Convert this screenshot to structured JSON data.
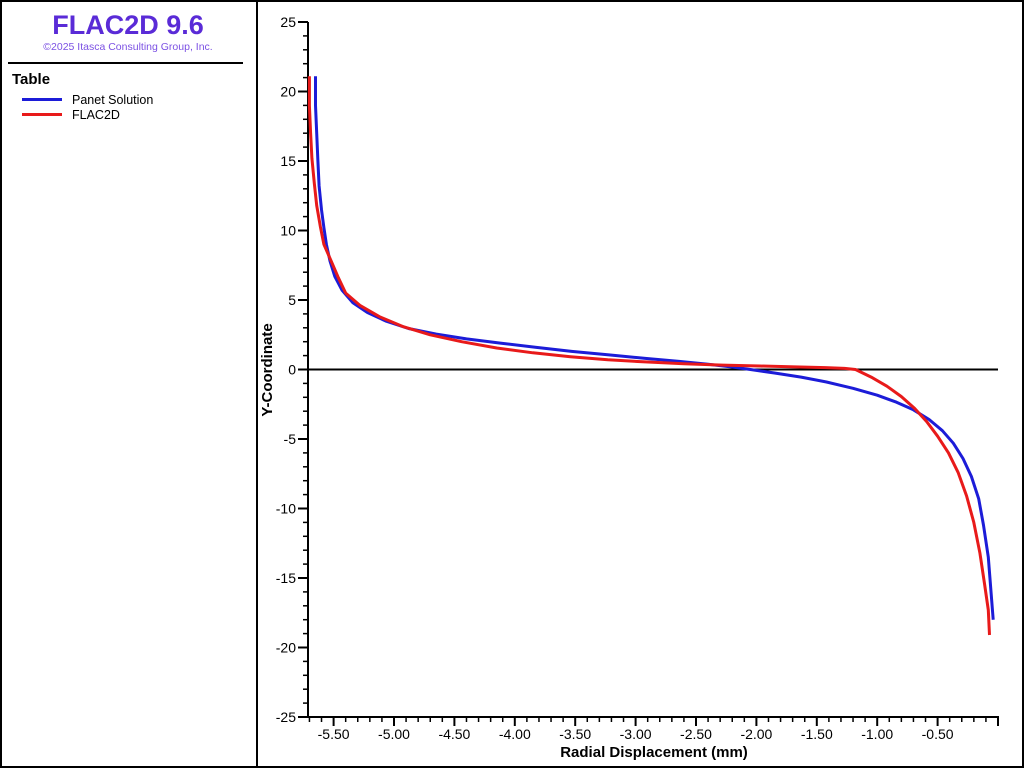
{
  "sidebar": {
    "logo_title": "FLAC2D 9.6",
    "logo_color": "#5a2bd7",
    "copyright": "©2025 Itasca Consulting Group, Inc.",
    "copyright_color": "#7b50e3",
    "legend_title": "Table"
  },
  "chart_data": {
    "type": "line",
    "title": "",
    "xlabel": "Radial Displacement (mm)",
    "ylabel": "Y-Coordinate",
    "xlim": [
      -5.72,
      0
    ],
    "ylim": [
      -25,
      25
    ],
    "grid": false,
    "zero_line": true,
    "legend_position": "sidebar",
    "x_ticks": [
      {
        "v": -5.5,
        "label": "-5.50"
      },
      {
        "v": -5.0,
        "label": "-5.00"
      },
      {
        "v": -4.5,
        "label": "-4.50"
      },
      {
        "v": -4.0,
        "label": "-4.00"
      },
      {
        "v": -3.5,
        "label": "-3.50"
      },
      {
        "v": -3.0,
        "label": "-3.00"
      },
      {
        "v": -2.5,
        "label": "-2.50"
      },
      {
        "v": -2.0,
        "label": "-2.00"
      },
      {
        "v": -1.5,
        "label": "-1.50"
      },
      {
        "v": -1.0,
        "label": "-1.00"
      },
      {
        "v": -0.5,
        "label": "-0.50"
      },
      {
        "v": 0.0,
        "label": ""
      }
    ],
    "x_minor_step": 0.1,
    "y_ticks": [
      {
        "v": 25,
        "label": "25"
      },
      {
        "v": 20,
        "label": "20"
      },
      {
        "v": 15,
        "label": "15"
      },
      {
        "v": 10,
        "label": "10"
      },
      {
        "v": 5,
        "label": "5"
      },
      {
        "v": 0,
        "label": "0"
      },
      {
        "v": -5,
        "label": "-5"
      },
      {
        "v": -10,
        "label": "-10"
      },
      {
        "v": -15,
        "label": "-15"
      },
      {
        "v": -20,
        "label": "-20"
      },
      {
        "v": -25,
        "label": "-25"
      }
    ],
    "y_minor_step": 1,
    "series": [
      {
        "name": "Panet Solution",
        "color": "#1c1cd8",
        "points": [
          [
            -5.65,
            21.1
          ],
          [
            -5.65,
            19.0
          ],
          [
            -5.64,
            17.0
          ],
          [
            -5.63,
            15.0
          ],
          [
            -5.62,
            13.2
          ],
          [
            -5.6,
            11.5
          ],
          [
            -5.58,
            10.2
          ],
          [
            -5.56,
            9.0
          ],
          [
            -5.53,
            7.8
          ],
          [
            -5.49,
            6.7
          ],
          [
            -5.43,
            5.7
          ],
          [
            -5.34,
            4.8
          ],
          [
            -5.22,
            4.1
          ],
          [
            -5.07,
            3.5
          ],
          [
            -4.88,
            2.95
          ],
          [
            -4.65,
            2.55
          ],
          [
            -4.4,
            2.2
          ],
          [
            -4.12,
            1.9
          ],
          [
            -3.83,
            1.6
          ],
          [
            -3.53,
            1.3
          ],
          [
            -3.22,
            1.05
          ],
          [
            -2.92,
            0.8
          ],
          [
            -2.64,
            0.58
          ],
          [
            -2.4,
            0.38
          ],
          [
            -2.2,
            0.18
          ],
          [
            -2.05,
            0.0
          ],
          [
            -1.85,
            -0.25
          ],
          [
            -1.63,
            -0.55
          ],
          [
            -1.42,
            -0.9
          ],
          [
            -1.2,
            -1.35
          ],
          [
            -1.0,
            -1.85
          ],
          [
            -0.84,
            -2.35
          ],
          [
            -0.7,
            -2.9
          ],
          [
            -0.57,
            -3.6
          ],
          [
            -0.46,
            -4.4
          ],
          [
            -0.37,
            -5.3
          ],
          [
            -0.29,
            -6.4
          ],
          [
            -0.22,
            -7.7
          ],
          [
            -0.16,
            -9.3
          ],
          [
            -0.12,
            -11.2
          ],
          [
            -0.08,
            -13.5
          ],
          [
            -0.06,
            -15.8
          ],
          [
            -0.04,
            -18.0
          ]
        ]
      },
      {
        "name": "FLAC2D",
        "color": "#e81a1a",
        "points": [
          [
            -5.7,
            21.1
          ],
          [
            -5.7,
            19.0
          ],
          [
            -5.69,
            17.0
          ],
          [
            -5.68,
            15.2
          ],
          [
            -5.66,
            13.4
          ],
          [
            -5.64,
            11.8
          ],
          [
            -5.61,
            10.3
          ],
          [
            -5.58,
            9.0
          ],
          [
            -5.52,
            7.8
          ],
          [
            -5.46,
            6.6
          ],
          [
            -5.4,
            5.5
          ],
          [
            -5.28,
            4.6
          ],
          [
            -5.12,
            3.8
          ],
          [
            -4.93,
            3.1
          ],
          [
            -4.7,
            2.5
          ],
          [
            -4.44,
            2.0
          ],
          [
            -4.15,
            1.55
          ],
          [
            -3.85,
            1.2
          ],
          [
            -3.54,
            0.92
          ],
          [
            -3.23,
            0.7
          ],
          [
            -2.92,
            0.55
          ],
          [
            -2.6,
            0.42
          ],
          [
            -2.28,
            0.32
          ],
          [
            -1.97,
            0.25
          ],
          [
            -1.68,
            0.19
          ],
          [
            -1.43,
            0.14
          ],
          [
            -1.27,
            0.08
          ],
          [
            -1.18,
            0.0
          ],
          [
            -1.05,
            -0.55
          ],
          [
            -0.92,
            -1.2
          ],
          [
            -0.8,
            -1.95
          ],
          [
            -0.69,
            -2.8
          ],
          [
            -0.59,
            -3.75
          ],
          [
            -0.5,
            -4.8
          ],
          [
            -0.41,
            -6.0
          ],
          [
            -0.33,
            -7.4
          ],
          [
            -0.26,
            -9.1
          ],
          [
            -0.2,
            -11.0
          ],
          [
            -0.15,
            -13.2
          ],
          [
            -0.11,
            -15.5
          ],
          [
            -0.08,
            -17.3
          ],
          [
            -0.07,
            -19.1
          ]
        ]
      }
    ]
  }
}
